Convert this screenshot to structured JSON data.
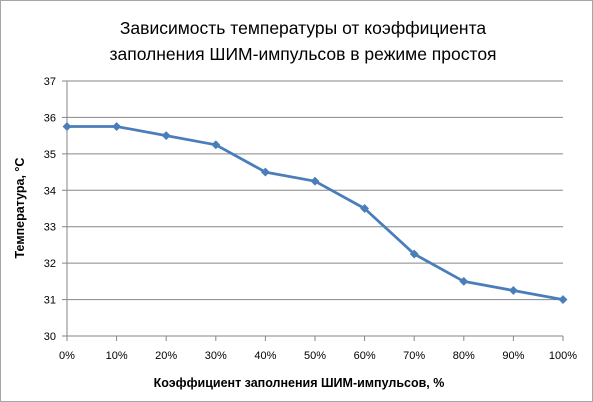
{
  "chart_data": {
    "type": "line",
    "title_lines": [
      "Зависимость температуры  от коэффициента",
      "заполнения ШИМ-импульсов в режиме простоя"
    ],
    "xlabel": "Коэффициент заполнения ШИМ-импульсов, %",
    "ylabel": "Температура, °С",
    "categories": [
      "0%",
      "10%",
      "20%",
      "30%",
      "40%",
      "50%",
      "60%",
      "70%",
      "80%",
      "90%",
      "100%"
    ],
    "x": [
      0,
      10,
      20,
      30,
      40,
      50,
      60,
      70,
      80,
      90,
      100
    ],
    "series": [
      {
        "values": [
          35.75,
          35.75,
          35.5,
          35.25,
          34.5,
          34.25,
          33.5,
          32.25,
          31.5,
          31.25,
          31.0
        ]
      }
    ],
    "ylim": [
      30,
      37
    ],
    "yticks": [
      "30",
      "31",
      "32",
      "33",
      "34",
      "35",
      "36",
      "37"
    ],
    "grid": true,
    "legend": "none",
    "colors": {
      "series": "#4a7ebb",
      "grid": "#868686",
      "axis": "#868686",
      "frame": "#a6a6a6"
    }
  }
}
